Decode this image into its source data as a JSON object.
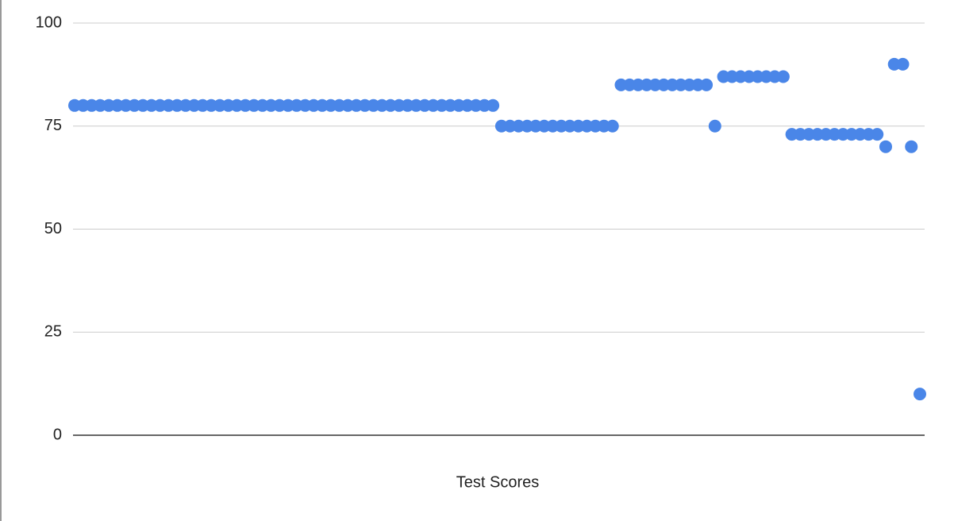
{
  "chart_data": {
    "type": "scatter",
    "x_label": "Test Scores",
    "values": [
      80,
      80,
      80,
      80,
      80,
      80,
      80,
      80,
      80,
      80,
      80,
      80,
      80,
      80,
      80,
      80,
      80,
      80,
      80,
      80,
      80,
      80,
      80,
      80,
      80,
      80,
      80,
      80,
      80,
      80,
      80,
      80,
      80,
      80,
      80,
      80,
      80,
      80,
      80,
      80,
      80,
      80,
      80,
      80,
      80,
      80,
      80,
      80,
      80,
      80,
      75,
      75,
      75,
      75,
      75,
      75,
      75,
      75,
      75,
      75,
      75,
      75,
      75,
      75,
      85,
      85,
      85,
      85,
      85,
      85,
      85,
      85,
      85,
      85,
      85,
      75,
      87,
      87,
      87,
      87,
      87,
      87,
      87,
      87,
      73,
      73,
      73,
      73,
      73,
      73,
      73,
      73,
      73,
      73,
      73,
      70,
      90,
      90,
      70,
      10
    ],
    "color": "#4a86e8",
    "ylim": [
      0,
      100
    ],
    "yticks": [
      0,
      25,
      50,
      75,
      100
    ],
    "grid": true
  }
}
